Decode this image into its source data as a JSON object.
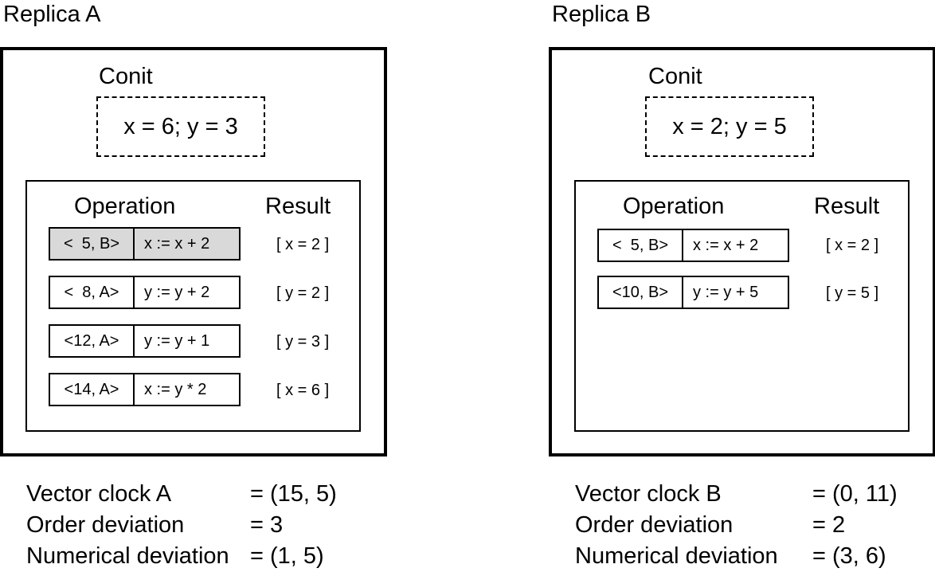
{
  "replicas": [
    {
      "title": "Replica A",
      "conit_label": "Conit",
      "conit_value": "x = 6; y = 3",
      "operation_header": "Operation",
      "result_header": "Result",
      "operations": [
        {
          "timestamp": "<  5, B>",
          "expr": "x := x + 2",
          "result": "[ x = 2 ]",
          "shaded": true
        },
        {
          "timestamp": "<  8, A>",
          "expr": "y := y + 2",
          "result": "[ y = 2 ]",
          "shaded": false
        },
        {
          "timestamp": "<12, A>",
          "expr": "y := y + 1",
          "result": "[ y = 3 ]",
          "shaded": false
        },
        {
          "timestamp": "<14, A>",
          "expr": "x := y * 2",
          "result": "[ x = 6 ]",
          "shaded": false
        }
      ],
      "stats": [
        {
          "label": "Vector clock A",
          "value": "= (15, 5)"
        },
        {
          "label": "Order deviation",
          "value": "= 3"
        },
        {
          "label": "Numerical deviation",
          "value": "= (1, 5)"
        }
      ]
    },
    {
      "title": "Replica B",
      "conit_label": "Conit",
      "conit_value": "x = 2; y = 5",
      "operation_header": "Operation",
      "result_header": "Result",
      "operations": [
        {
          "timestamp": "<  5, B>",
          "expr": "x := x + 2",
          "result": "[ x = 2 ]",
          "shaded": false
        },
        {
          "timestamp": "<10, B>",
          "expr": "y := y + 5",
          "result": "[ y = 5 ]",
          "shaded": false
        }
      ],
      "stats": [
        {
          "label": "Vector clock B",
          "value": "= (0, 11)"
        },
        {
          "label": "Order deviation",
          "value": "= 2"
        },
        {
          "label": "Numerical deviation",
          "value": "= (3, 6)"
        }
      ]
    }
  ],
  "colors": {
    "shaded_cell": "#d9d9d9",
    "line": "#000000"
  }
}
